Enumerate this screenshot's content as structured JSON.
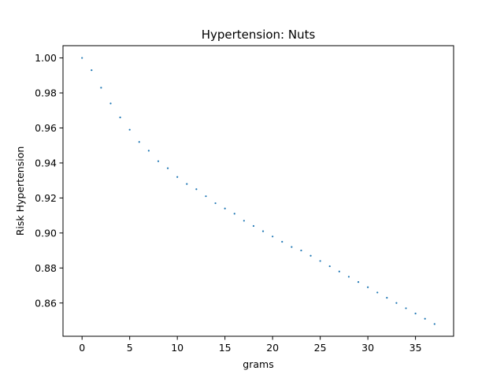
{
  "chart_data": {
    "type": "scatter",
    "title": "Hypertension: Nuts",
    "xlabel": "grams",
    "ylabel": "Risk Hypertension",
    "xlim": [
      -2,
      39
    ],
    "ylim": [
      0.841,
      1.007
    ],
    "xticks": [
      0,
      5,
      10,
      15,
      20,
      25,
      30,
      35
    ],
    "xtick_labels": [
      "0",
      "5",
      "10",
      "15",
      "20",
      "25",
      "30",
      "35"
    ],
    "yticks": [
      0.86,
      0.88,
      0.9,
      0.92,
      0.94,
      0.96,
      0.98,
      1.0
    ],
    "ytick_labels": [
      "0.86",
      "0.88",
      "0.90",
      "0.92",
      "0.94",
      "0.96",
      "0.98",
      "1.00"
    ],
    "grid": false,
    "color": "#1f77b4",
    "series": [
      {
        "x": [
          0,
          1,
          2,
          3,
          4,
          5,
          6,
          7,
          8,
          9,
          10,
          11,
          12,
          13,
          14,
          15,
          16,
          17,
          18,
          19,
          20,
          21,
          22,
          23,
          24,
          25,
          26,
          27,
          28,
          29,
          30,
          31,
          32,
          33,
          34,
          35,
          36,
          37
        ],
        "y": [
          1.0,
          0.993,
          0.983,
          0.974,
          0.966,
          0.959,
          0.952,
          0.947,
          0.941,
          0.937,
          0.932,
          0.928,
          0.925,
          0.921,
          0.917,
          0.914,
          0.911,
          0.907,
          0.904,
          0.901,
          0.898,
          0.895,
          0.892,
          0.89,
          0.887,
          0.884,
          0.881,
          0.878,
          0.875,
          0.872,
          0.869,
          0.866,
          0.863,
          0.86,
          0.857,
          0.854,
          0.851,
          0.848
        ]
      }
    ]
  }
}
